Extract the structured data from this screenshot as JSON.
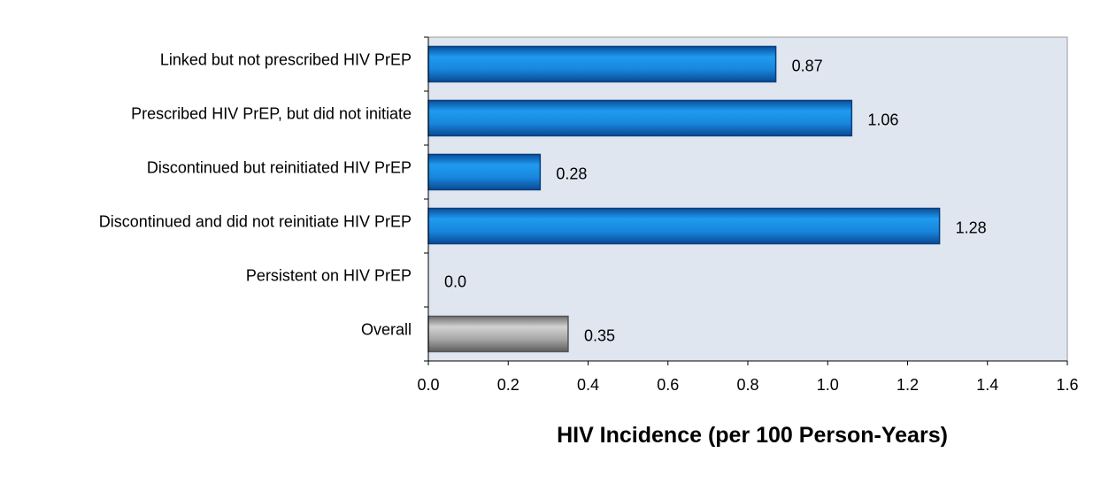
{
  "chart_data": {
    "type": "bar",
    "orientation": "horizontal",
    "categories": [
      "Linked but not prescribed HIV PrEP",
      "Prescribed HIV PrEP, but did not initiate",
      "Discontinued but reinitiated HIV PrEP",
      "Discontinued and did not reinitiate HIV PrEP",
      "Persistent on HIV PrEP",
      "Overall"
    ],
    "values": [
      0.87,
      1.06,
      0.28,
      1.28,
      0.0,
      0.35
    ],
    "value_labels": [
      "0.87",
      "1.06",
      "0.28",
      "1.28",
      "0.0",
      "0.35"
    ],
    "bar_colors": [
      "#1a8fe0",
      "#1a8fe0",
      "#1a8fe0",
      "#1a8fe0",
      "#1a8fe0",
      "#a0a0a0"
    ],
    "xlabel": "HIV Incidence (per 100 Person-Years)",
    "ylabel": "",
    "xlim": [
      0.0,
      1.6
    ],
    "x_ticks": [
      0.0,
      0.2,
      0.4,
      0.6,
      0.8,
      1.0,
      1.2,
      1.4,
      1.6
    ],
    "x_tick_labels": [
      "0.0",
      "0.2",
      "0.4",
      "0.6",
      "0.8",
      "1.0",
      "1.2",
      "1.4",
      "1.6"
    ],
    "grid": false,
    "legend": "none",
    "plot_background": "#dfe6f0"
  }
}
